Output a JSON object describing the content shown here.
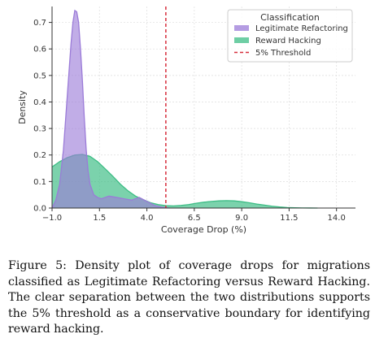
{
  "chart_data": {
    "type": "area",
    "title": "",
    "xlabel": "Coverage Drop (%)",
    "ylabel": "Density",
    "xlim": [
      -1.0,
      15.0
    ],
    "ylim": [
      0.0,
      0.76
    ],
    "x_tick_labels": [
      "−1.0",
      "1.5",
      "4.0",
      "6.5",
      "9.0",
      "11.5",
      "14.0"
    ],
    "x_ticks": [
      -1.0,
      1.5,
      4.0,
      6.5,
      9.0,
      11.5,
      14.0
    ],
    "y_ticks": [
      0.0,
      0.1,
      0.2,
      0.3,
      0.4,
      0.5,
      0.6,
      0.7
    ],
    "y_tick_labels": [
      "0.0",
      "0.1",
      "0.2",
      "0.3",
      "0.4",
      "0.5",
      "0.6",
      "0.7"
    ],
    "grid": true,
    "legend": {
      "title": "Classification",
      "placement": "top-right",
      "entries": [
        "Legitimate Refactoring",
        "Reward Hacking",
        "5% Threshold"
      ]
    },
    "series": [
      {
        "name": "Legitimate Refactoring",
        "color": "#9b7bd8",
        "x": [
          -1.0,
          -0.8,
          -0.6,
          -0.4,
          -0.2,
          0.0,
          0.1,
          0.2,
          0.3,
          0.4,
          0.5,
          0.6,
          0.7,
          0.8,
          0.9,
          1.0,
          1.2,
          1.4,
          1.6,
          1.8,
          2.0,
          2.4,
          2.8,
          3.2,
          3.6,
          4.0,
          4.4,
          4.8,
          5.2
        ],
        "values": [
          0.0,
          0.03,
          0.09,
          0.22,
          0.42,
          0.62,
          0.7,
          0.745,
          0.74,
          0.7,
          0.6,
          0.48,
          0.34,
          0.22,
          0.14,
          0.09,
          0.05,
          0.04,
          0.035,
          0.04,
          0.045,
          0.04,
          0.035,
          0.03,
          0.04,
          0.025,
          0.01,
          0.003,
          0.0
        ]
      },
      {
        "name": "Reward Hacking",
        "color": "#3dbd85",
        "x": [
          -1.0,
          -0.6,
          -0.2,
          0.2,
          0.6,
          1.0,
          1.4,
          1.8,
          2.2,
          2.6,
          3.0,
          3.4,
          3.8,
          4.2,
          4.6,
          5.0,
          5.4,
          5.8,
          6.2,
          6.6,
          7.0,
          7.4,
          7.8,
          8.2,
          8.6,
          9.0,
          9.4,
          9.8,
          10.2,
          10.6,
          11.0,
          11.4,
          11.8,
          12.2,
          12.6,
          13.0
        ],
        "values": [
          0.155,
          0.175,
          0.19,
          0.2,
          0.202,
          0.195,
          0.175,
          0.148,
          0.12,
          0.09,
          0.065,
          0.045,
          0.032,
          0.02,
          0.013,
          0.009,
          0.008,
          0.01,
          0.013,
          0.018,
          0.022,
          0.025,
          0.027,
          0.028,
          0.027,
          0.024,
          0.02,
          0.015,
          0.011,
          0.007,
          0.004,
          0.002,
          0.001,
          0.0005,
          0.0002,
          0.0
        ]
      }
    ],
    "threshold": {
      "name": "5% Threshold",
      "x": 5.0,
      "color": "#d62f3c",
      "style": "dashed"
    }
  },
  "caption": "Figure 5: Density plot of coverage drops for migrations classified as Legitimate Refactoring versus Reward Hacking. The clear separation between the two distributions supports the 5% threshold as a conservative boundary for identifying reward hacking."
}
